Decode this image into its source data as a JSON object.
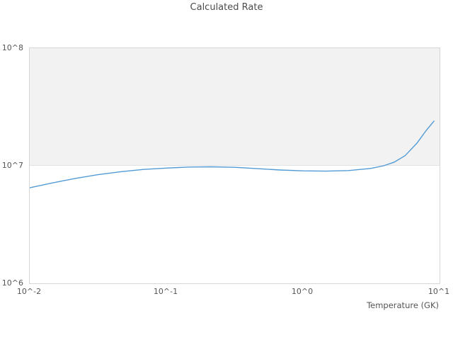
{
  "title": "Calculated Rate",
  "x_axis": {
    "label": "Temperature (GK)",
    "scale": "log",
    "ticks": [
      {
        "label": "10^-2",
        "value": 0.01
      },
      {
        "label": "10^-1",
        "value": 0.1
      },
      {
        "label": "10^0",
        "value": 1
      },
      {
        "label": "10^1",
        "value": 10
      }
    ]
  },
  "y_axis": {
    "label": "",
    "scale": "log",
    "ticks": [
      {
        "label": "10^6",
        "value": 1000000
      },
      {
        "label": "10^7",
        "value": 10000000
      },
      {
        "label": "10^8",
        "value": 100000000
      }
    ]
  },
  "colors": {
    "line": "#539bd5",
    "band_fill": "#f2f2f2",
    "band_border": "#e2e2e2",
    "plot_border": "#d6d6d6",
    "text": "#555555",
    "background": "#ffffff"
  },
  "chart_data": {
    "type": "line",
    "title": "Calculated Rate",
    "xlabel": "Temperature (GK)",
    "ylabel": "",
    "x_scale": "log",
    "y_scale": "log",
    "xlim": [
      0.01,
      10
    ],
    "ylim": [
      1000000,
      100000000
    ],
    "grid": "off",
    "legend": "none",
    "shaded_band": {
      "y_from": 10000000,
      "y_to": 100000000
    },
    "series": [
      {
        "name": "Calculated Rate",
        "x": [
          0.01,
          0.0147,
          0.0215,
          0.0316,
          0.0464,
          0.0681,
          0.1,
          0.147,
          0.215,
          0.316,
          0.464,
          0.681,
          1.0,
          1.47,
          2.15,
          3.16,
          3.9,
          4.64,
          5.6,
          6.81,
          8.0,
          9.1
        ],
        "y": [
          6500000,
          7150000,
          7800000,
          8400000,
          8900000,
          9300000,
          9550000,
          9750000,
          9800000,
          9700000,
          9450000,
          9200000,
          9050000,
          9000000,
          9100000,
          9500000,
          10000000,
          10700000,
          12200000,
          15500000,
          20000000,
          24000000
        ]
      }
    ]
  }
}
